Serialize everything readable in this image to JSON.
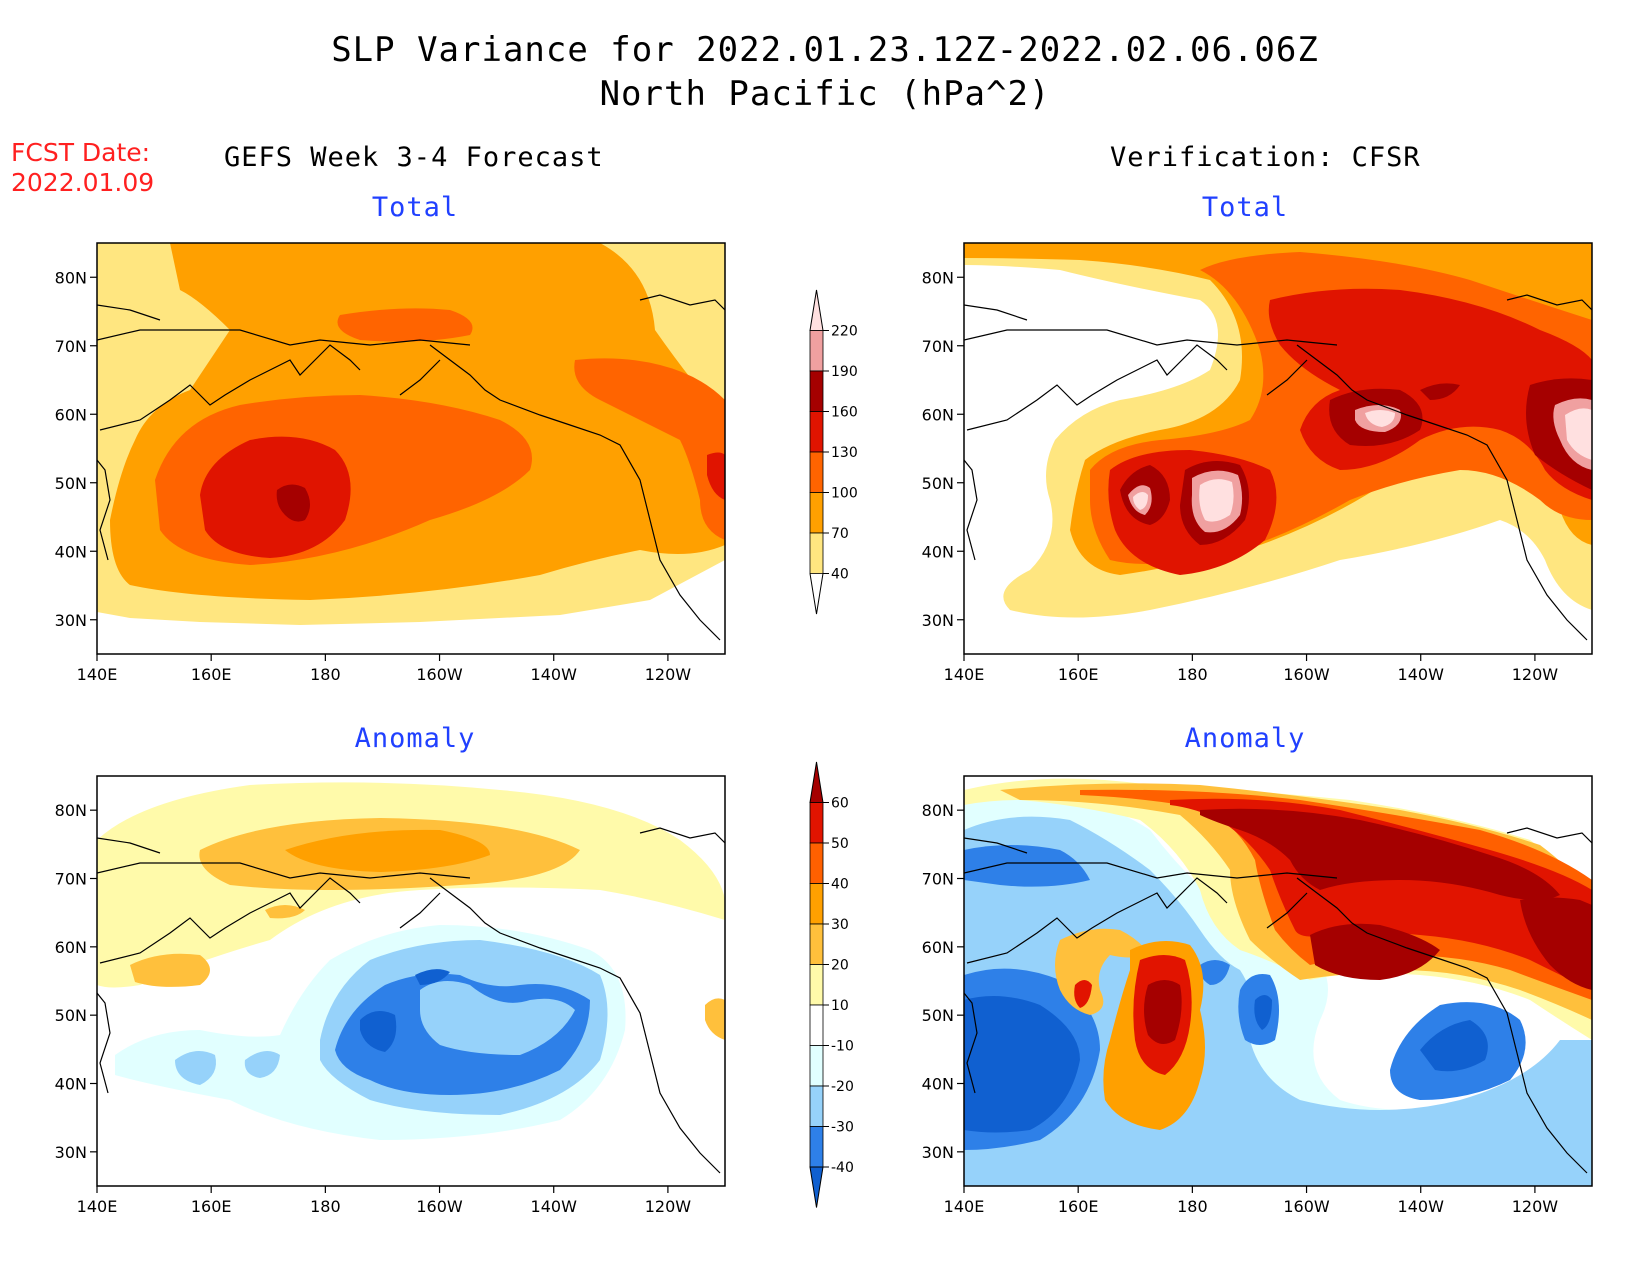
{
  "header": {
    "title": "SLP Variance for 2022.01.23.12Z-2022.02.06.06Z",
    "subtitle": "North Pacific (hPa^2)",
    "fcst_label": "FCST Date:",
    "fcst_date": "2022.01.09"
  },
  "columns": {
    "left": "GEFS Week 3-4 Forecast",
    "right": "Verification: CFSR"
  },
  "panels": [
    {
      "id": "gefs-total",
      "title": "Total",
      "kind": "total"
    },
    {
      "id": "cfsr-total",
      "title": "Total",
      "kind": "total"
    },
    {
      "id": "gefs-anomaly",
      "title": "Anomaly",
      "kind": "anomaly"
    },
    {
      "id": "cfsr-anomaly",
      "title": "Anomaly",
      "kind": "anomaly"
    }
  ],
  "axes": {
    "lon_labels": [
      "140E",
      "160E",
      "180",
      "160W",
      "140W",
      "120W"
    ],
    "lon_values": [
      140,
      160,
      180,
      200,
      220,
      240
    ],
    "lat_labels": [
      "30N",
      "40N",
      "50N",
      "60N",
      "70N",
      "80N"
    ],
    "lat_values": [
      30,
      40,
      50,
      60,
      70,
      80
    ],
    "lon_range": [
      140,
      250
    ],
    "lat_range": [
      25,
      85
    ]
  },
  "colorbars": {
    "total": {
      "levels": [
        "40",
        "70",
        "100",
        "130",
        "160",
        "190",
        "220"
      ],
      "colors": [
        "#ffe680",
        "#ffa000",
        "#ff6400",
        "#e01400",
        "#a50000",
        "#f0a0a0",
        "#ffe0e0"
      ]
    },
    "anomaly": {
      "levels": [
        "-40",
        "-30",
        "-20",
        "-10",
        "10",
        "20",
        "30",
        "40",
        "50",
        "60"
      ],
      "colors": [
        "#1060d0",
        "#2e80e8",
        "#96d2fa",
        "#e1ffff",
        "#ffffff",
        "#fffaaa",
        "#ffc03c",
        "#ffa000",
        "#ff6000",
        "#e11400",
        "#a50000"
      ]
    }
  }
}
